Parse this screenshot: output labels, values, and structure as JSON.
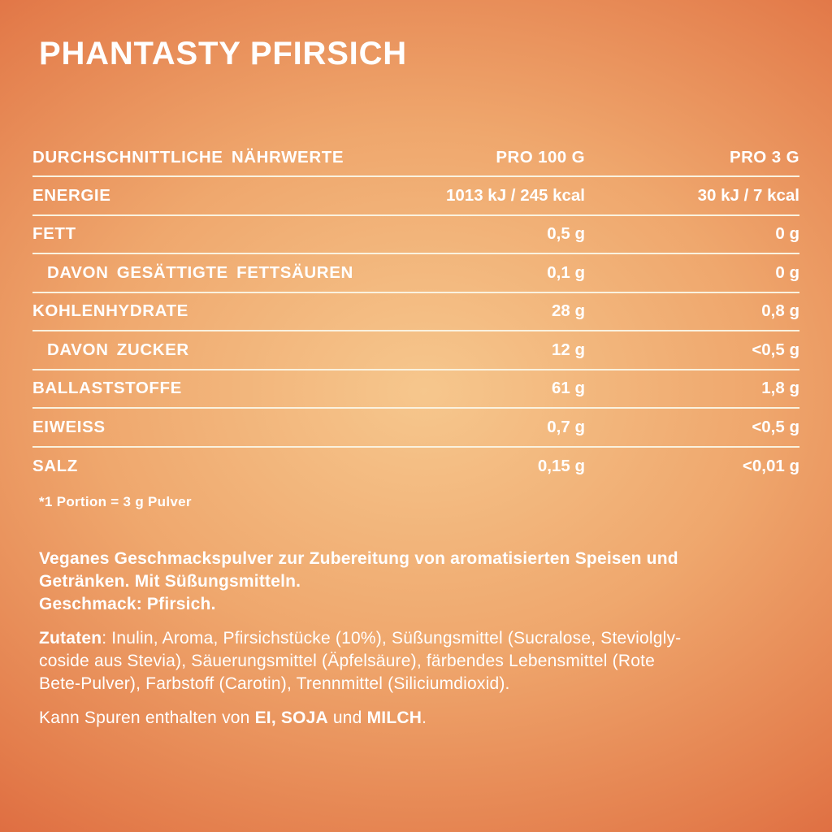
{
  "colors": {
    "background_center": "#F6C78D",
    "background_mid1": "#EFA76D",
    "background_mid2": "#E37C4B",
    "background_mid3": "#D75431",
    "background_edge": "#D4482B",
    "text": "#FFFFFF",
    "divider": "#FAF2DF"
  },
  "title": "PHANTASTY PFIRSICH",
  "nutrition_table": {
    "header": {
      "label": "DURCHSCHNITTLICHE NÄHRWERTE",
      "per_100g": "PRO 100 G",
      "per_3g": "PRO 3 G"
    },
    "rows": [
      {
        "label": "ENERGIE",
        "per_100g": "1013 kJ / 245 kcal",
        "per_3g": "30 kJ / 7 kcal"
      },
      {
        "label": "FETT",
        "per_100g": "0,5 g",
        "per_3g": "0 g"
      },
      {
        "label": "DAVON GESÄTTIGTE FETTSÄUREN",
        "per_100g": "0,1 g",
        "per_3g": "0 g"
      },
      {
        "label": "KOHLENHYDRATE",
        "per_100g": "28 g",
        "per_3g": "0,8 g"
      },
      {
        "label": "DAVON ZUCKER",
        "per_100g": "12 g",
        "per_3g": "<0,5 g"
      },
      {
        "label": "BALLASTSTOFFE",
        "per_100g": "61 g",
        "per_3g": "1,8 g"
      },
      {
        "label": "EIWEISS",
        "per_100g": "0,7 g",
        "per_3g": "<0,5 g"
      },
      {
        "label": "SALZ",
        "per_100g": "0,15 g",
        "per_3g": "<0,01 g"
      }
    ],
    "footnote": "*1 Portion = 3 g Pulver"
  },
  "description": {
    "lines": [
      "Veganes Geschmackspulver zur Zubereitung von aromatisierten Speisen und",
      "Getränken. Mit Süßungsmitteln.",
      "Geschmack: Pfirsich."
    ]
  },
  "ingredients": {
    "label": "Zutaten",
    "lines": [
      ": Inulin, Aroma, Pfirsichstücke (10%), Süßungsmittel (Sucralose, Steviolgly-",
      "coside aus Stevia), Säuerungsmittel (Äpfelsäure), färbendes Lebensmittel (Rote",
      "Bete-Pulver), Farbstoff (Carotin), Trennmittel (Siliciumdioxid)."
    ]
  },
  "allergens": {
    "prefix": "Kann Spuren enthalten von ",
    "bold_1": "EI, SOJA",
    "middle": " und ",
    "bold_2": "MILCH",
    "suffix": "."
  }
}
